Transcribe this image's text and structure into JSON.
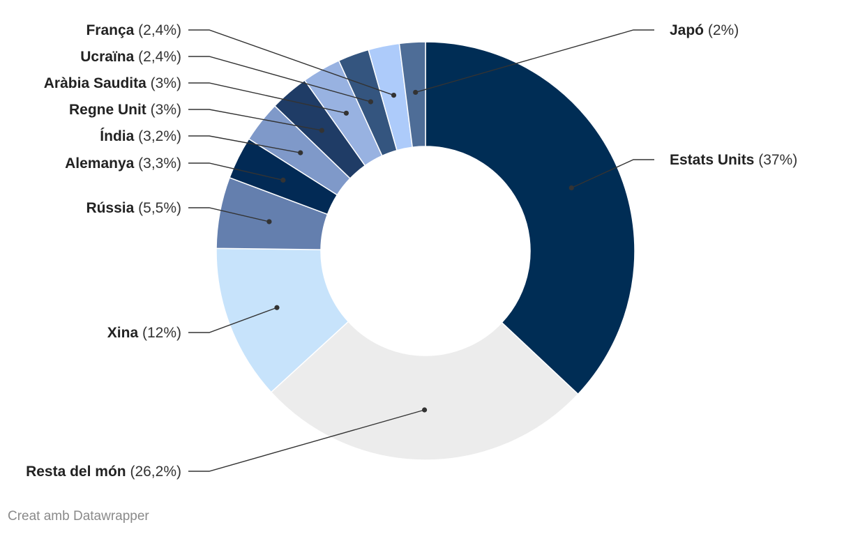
{
  "chart_data": {
    "type": "pie",
    "variant": "donut",
    "slices": [
      {
        "name": "Estats Units",
        "value": 37,
        "label_pct": "(37%)",
        "color": "#002d55"
      },
      {
        "name": "Resta del món",
        "value": 26.2,
        "label_pct": "(26,2%)",
        "color": "#ececec"
      },
      {
        "name": "Xina",
        "value": 12,
        "label_pct": "(12%)",
        "color": "#c7e3fb"
      },
      {
        "name": "Rússia",
        "value": 5.5,
        "label_pct": "(5,5%)",
        "color": "#647fae"
      },
      {
        "name": "Alemanya",
        "value": 3.3,
        "label_pct": "(3,3%)",
        "color": "#022a55"
      },
      {
        "name": "Índia",
        "value": 3.2,
        "label_pct": "(3,2%)",
        "color": "#7f99c9"
      },
      {
        "name": "Regne Unit",
        "value": 3,
        "label_pct": "(3%)",
        "color": "#1f3c66"
      },
      {
        "name": "Aràbia Saudita",
        "value": 3,
        "label_pct": "(3%)",
        "color": "#98b2e1"
      },
      {
        "name": "Ucraïna",
        "value": 2.4,
        "label_pct": "(2,4%)",
        "color": "#34557f"
      },
      {
        "name": "França",
        "value": 2.4,
        "label_pct": "(2,4%)",
        "color": "#adcbfa"
      },
      {
        "name": "Japó",
        "value": 2,
        "label_pct": "(2%)",
        "color": "#4e6d97"
      }
    ]
  },
  "footer": "Creat amb Datawrapper"
}
